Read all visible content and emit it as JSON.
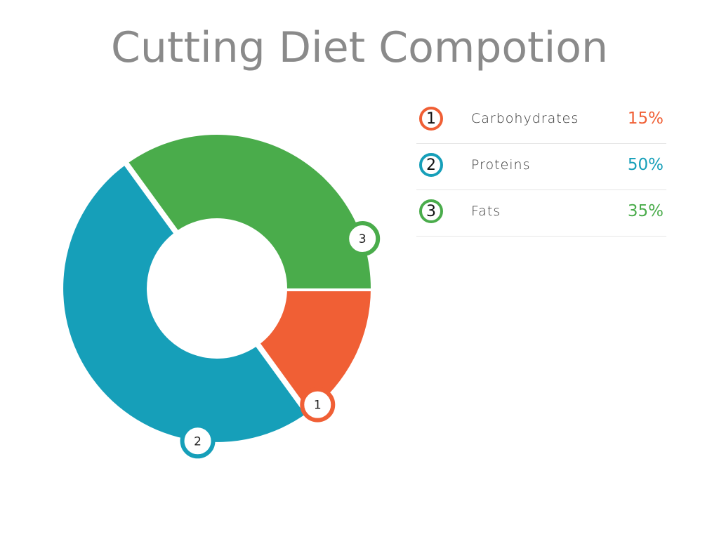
{
  "chart_data": {
    "type": "pie",
    "title": "Cutting Diet Compotion",
    "categories": [
      "Carbohydrates",
      "Proteins",
      "Fats"
    ],
    "values": [
      15,
      50,
      35
    ],
    "value_labels": [
      "15%",
      "50%",
      "35%"
    ],
    "markers": [
      "1",
      "2",
      "3"
    ],
    "colors": [
      "#f05f35",
      "#169fb9",
      "#4aac4b"
    ],
    "donut": true,
    "legend": "right"
  }
}
